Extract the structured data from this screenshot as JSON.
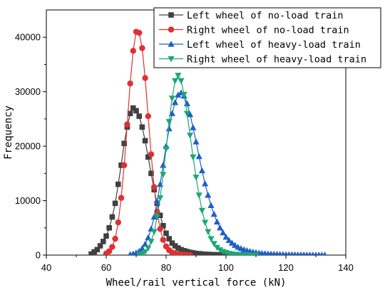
{
  "chart_data": {
    "type": "line",
    "title": "",
    "xlabel": "Wheel/rail vertical force (kN)",
    "ylabel": "Frequency",
    "xlim": [
      40,
      140
    ],
    "ylim": [
      0,
      45000
    ],
    "xticks": [
      "40",
      "60",
      "80",
      "100",
      "120",
      "140"
    ],
    "yticks": [
      "0",
      "10000",
      "20000",
      "30000",
      "40000"
    ],
    "xtick_values": [
      40,
      60,
      80,
      100,
      120,
      140
    ],
    "ytick_values": [
      0,
      10000,
      20000,
      30000,
      40000
    ],
    "grid": false,
    "legend_position": "top-right",
    "series": [
      {
        "name": "Left wheel of no-load train",
        "color": "#404040",
        "marker": "square",
        "x": [
          55,
          56,
          57,
          58,
          59,
          60,
          61,
          62,
          63,
          64,
          65,
          66,
          67,
          68,
          69,
          70,
          71,
          72,
          73,
          74,
          75,
          76,
          77,
          78,
          79,
          80,
          81,
          82,
          83,
          84,
          85,
          86,
          87,
          88,
          89,
          90,
          91,
          92,
          93,
          94,
          95,
          96,
          97,
          98,
          99,
          100,
          101
        ],
        "y": [
          200,
          600,
          1000,
          1700,
          2500,
          3500,
          5000,
          7000,
          9500,
          13000,
          16500,
          20500,
          23500,
          26000,
          27000,
          26500,
          25500,
          23500,
          21000,
          18000,
          15000,
          12000,
          9500,
          7300,
          5400,
          4000,
          3000,
          2200,
          1700,
          1300,
          1000,
          800,
          650,
          500,
          400,
          300,
          250,
          200,
          150,
          120,
          100,
          80,
          60,
          50,
          40,
          30,
          20
        ]
      },
      {
        "name": "Right wheel of no-load train",
        "color": "#e03030",
        "marker": "circle",
        "x": [
          60,
          61,
          62,
          63,
          64,
          65,
          66,
          67,
          68,
          69,
          70,
          71,
          72,
          73,
          74,
          75,
          76,
          77,
          78,
          79,
          80,
          81,
          82,
          83,
          84,
          85,
          86,
          87,
          88
        ],
        "y": [
          300,
          700,
          1500,
          3000,
          6000,
          10500,
          16500,
          24000,
          31500,
          37500,
          41000,
          40800,
          38000,
          32500,
          25500,
          18500,
          12500,
          8000,
          4800,
          2800,
          1600,
          900,
          500,
          300,
          180,
          100,
          60,
          30,
          10
        ]
      },
      {
        "name": "Left wheel of heavy-load train",
        "color": "#1f5fc8",
        "marker": "triangle-up",
        "x": [
          68,
          69,
          70,
          71,
          72,
          73,
          74,
          75,
          76,
          77,
          78,
          79,
          80,
          81,
          82,
          83,
          84,
          85,
          86,
          87,
          88,
          89,
          90,
          91,
          92,
          93,
          94,
          95,
          96,
          97,
          98,
          99,
          100,
          101,
          102,
          103,
          104,
          105,
          106,
          107,
          108,
          109,
          110,
          111,
          112,
          113,
          114,
          115,
          116,
          117,
          118,
          119,
          120,
          121,
          122,
          123,
          124,
          125,
          126,
          127,
          128,
          129,
          130,
          131,
          132,
          133
        ],
        "y": [
          100,
          200,
          400,
          700,
          1200,
          2000,
          3200,
          4800,
          7000,
          9800,
          13000,
          16500,
          20000,
          23200,
          26000,
          28000,
          29400,
          29800,
          29200,
          27800,
          25800,
          23400,
          20800,
          18100,
          15500,
          13100,
          11000,
          9100,
          7500,
          6100,
          5000,
          4100,
          3300,
          2700,
          2200,
          1800,
          1450,
          1200,
          1000,
          820,
          680,
          560,
          460,
          380,
          320,
          270,
          230,
          200,
          170,
          150,
          130,
          110,
          95,
          80,
          70,
          60,
          50,
          42,
          35,
          28,
          22,
          16,
          12,
          8,
          5,
          3
        ]
      },
      {
        "name": "Right wheel of heavy-load train",
        "color": "#1aa874",
        "marker": "triangle-down",
        "x": [
          71,
          72,
          73,
          74,
          75,
          76,
          77,
          78,
          79,
          80,
          81,
          82,
          83,
          84,
          85,
          86,
          87,
          88,
          89,
          90,
          91,
          92,
          93,
          94,
          95,
          96,
          97,
          98,
          99,
          100,
          101,
          102,
          103,
          104,
          105,
          106,
          107,
          108,
          109,
          110
        ],
        "y": [
          100,
          250,
          600,
          1300,
          2500,
          4300,
          7000,
          10500,
          14800,
          19500,
          24500,
          28800,
          32000,
          33000,
          32000,
          29500,
          26000,
          22000,
          18000,
          14300,
          11000,
          8200,
          6000,
          4300,
          3000,
          2100,
          1400,
          950,
          650,
          450,
          300,
          200,
          130,
          90,
          60,
          40,
          25,
          15,
          10,
          5
        ]
      }
    ]
  }
}
